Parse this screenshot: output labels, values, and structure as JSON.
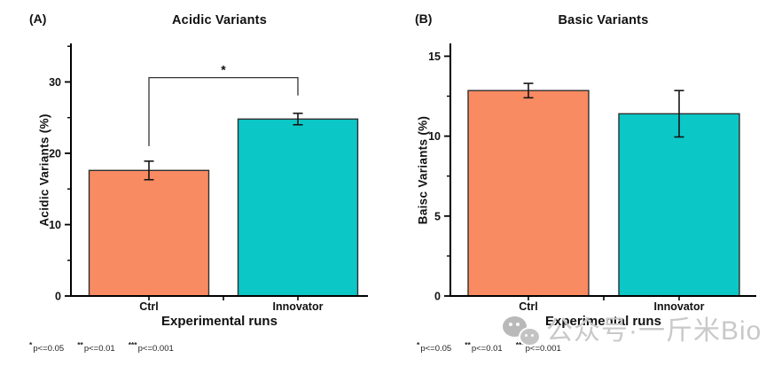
{
  "page": {
    "background": "#ffffff"
  },
  "watermark": {
    "icon": "wechat-icon",
    "text": "公众号·一斤米Bio",
    "color": "#c9c9c9"
  },
  "significance_legend": {
    "items": [
      {
        "stars": "*",
        "label": "p<=0.05"
      },
      {
        "stars": "**",
        "label": "p<=0.01"
      },
      {
        "stars": "***",
        "label": "p<=0.001"
      }
    ]
  },
  "chart_data": [
    {
      "type": "bar",
      "panel_label": "(A)",
      "title": "Acidic Variants",
      "xlabel": "Experimental runs",
      "ylabel": "Acidic Variants (%)",
      "categories": [
        "Ctrl",
        "Innovator"
      ],
      "values": [
        17.6,
        24.8
      ],
      "errors": [
        1.3,
        0.8
      ],
      "bar_colors": [
        "#F98B62",
        "#0BC7C6"
      ],
      "bar_edge_color": "#2f2f2f",
      "ylim": [
        0,
        35.4
      ],
      "yticks": [
        0,
        10,
        20,
        30
      ],
      "yminor": [
        5,
        15,
        25,
        35
      ],
      "grid": false,
      "legend": "none",
      "significance_bracket": {
        "from": "Ctrl",
        "to": "Innovator",
        "label": "*",
        "bar_y": 30.6,
        "left_drop_y": 21.0,
        "right_drop_y": 28.1
      }
    },
    {
      "type": "bar",
      "panel_label": "(B)",
      "title": "Basic Variants",
      "xlabel": "Experimental runs",
      "ylabel": "Baisc Variants (%)",
      "categories": [
        "Ctrl",
        "Innovator"
      ],
      "values": [
        12.85,
        11.4
      ],
      "errors": [
        0.45,
        1.45
      ],
      "bar_colors": [
        "#F98B62",
        "#0BC7C6"
      ],
      "bar_edge_color": "#2f2f2f",
      "ylim": [
        0,
        15.8
      ],
      "yticks": [
        0,
        5,
        10,
        15
      ],
      "yminor": [
        2.5,
        7.5,
        12.5
      ],
      "grid": false,
      "legend": "none"
    }
  ]
}
